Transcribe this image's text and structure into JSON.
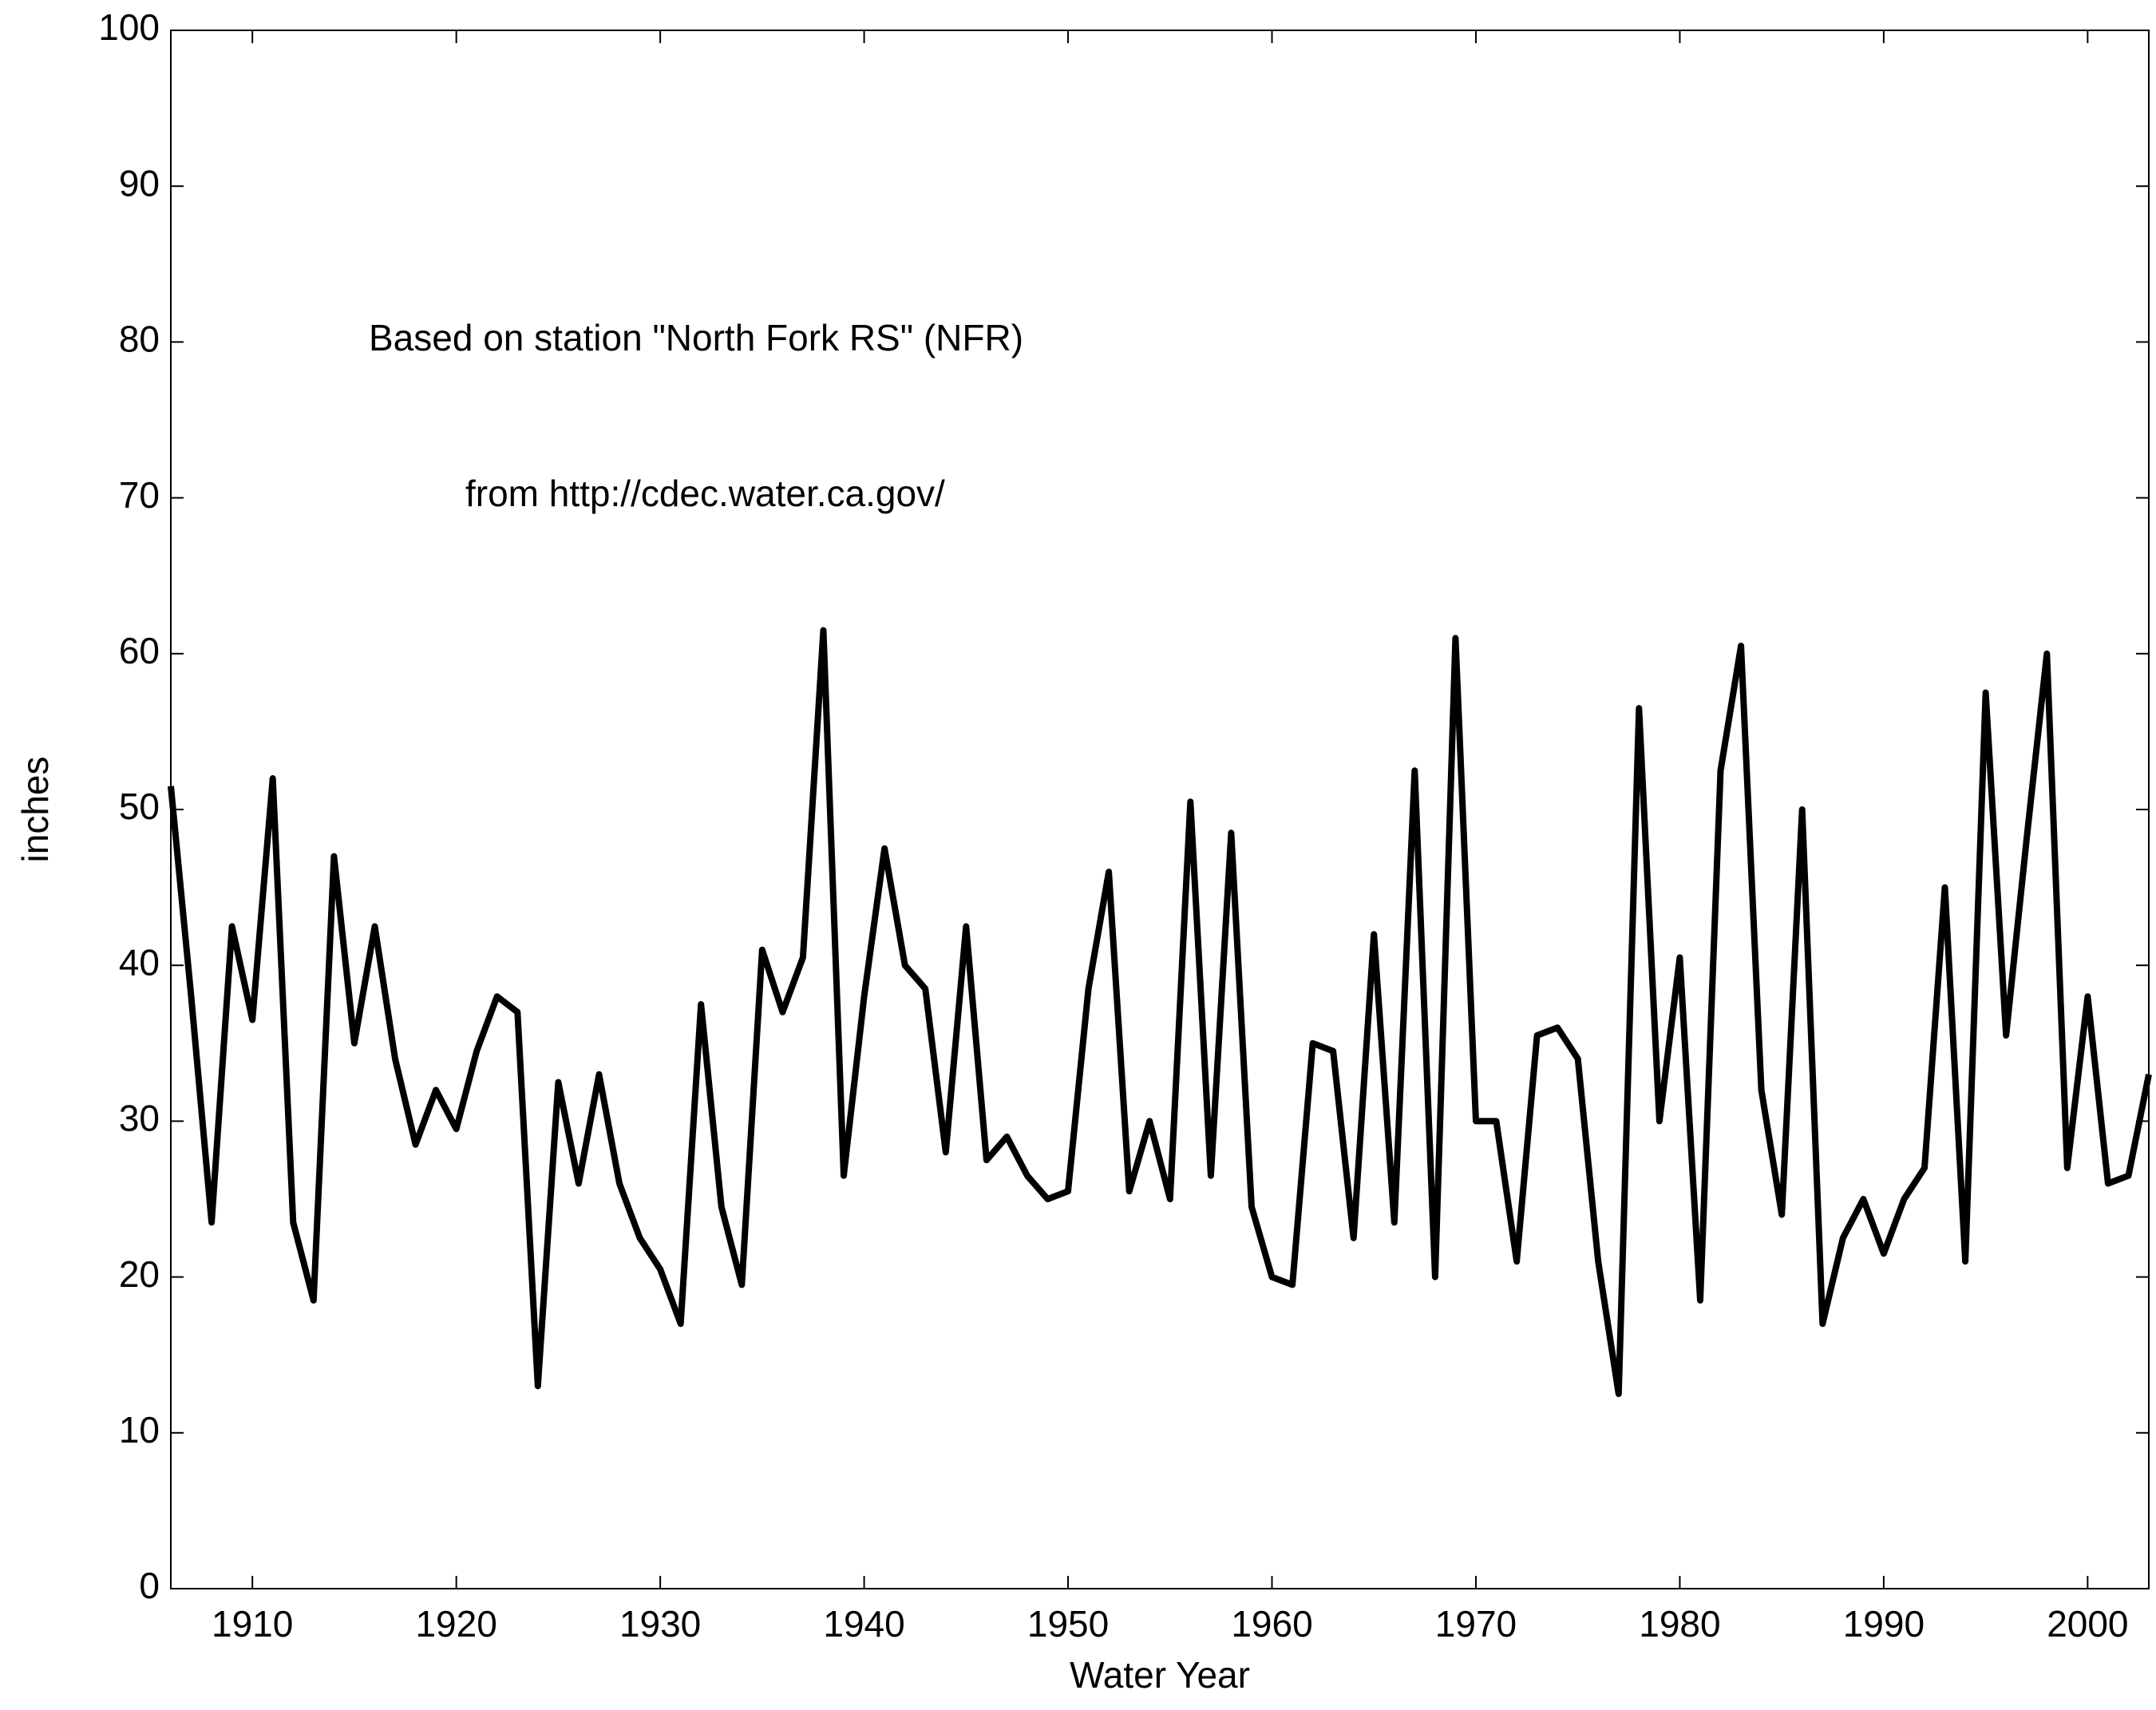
{
  "chart_data": {
    "type": "line",
    "x_label": "Water Year",
    "y_label": "inches",
    "annotations": [
      "Based on station \"North Fork RS\" (NFR)",
      "from http://cdec.water.ca.gov/"
    ],
    "x": [
      1906,
      1907,
      1908,
      1909,
      1910,
      1911,
      1912,
      1913,
      1914,
      1915,
      1916,
      1917,
      1918,
      1919,
      1920,
      1921,
      1922,
      1923,
      1924,
      1925,
      1926,
      1927,
      1928,
      1929,
      1930,
      1931,
      1932,
      1933,
      1934,
      1935,
      1936,
      1937,
      1938,
      1939,
      1940,
      1941,
      1942,
      1943,
      1944,
      1945,
      1946,
      1947,
      1948,
      1949,
      1950,
      1951,
      1952,
      1953,
      1954,
      1955,
      1956,
      1957,
      1958,
      1959,
      1960,
      1961,
      1962,
      1963,
      1964,
      1965,
      1966,
      1967,
      1968,
      1969,
      1970,
      1971,
      1972,
      1973,
      1974,
      1975,
      1976,
      1977,
      1978,
      1979,
      1980,
      1981,
      1982,
      1983,
      1984,
      1985,
      1986,
      1987,
      1988,
      1989,
      1990,
      1991,
      1992,
      1993,
      1994,
      1995,
      1996,
      1997,
      1998,
      1999,
      2000,
      2001,
      2002,
      2003
    ],
    "series": [
      {
        "name": "NFR",
        "color": "#000000",
        "values": [
          51.5,
          38,
          23.5,
          42.5,
          36.5,
          52,
          23.5,
          18.5,
          47,
          35,
          42.5,
          34,
          28.5,
          32,
          29.5,
          34.5,
          38,
          37,
          13,
          32.5,
          26,
          33,
          26,
          22.5,
          20.5,
          17,
          37.5,
          24.5,
          19.5,
          41,
          37,
          40.5,
          61.5,
          26.5,
          38,
          47.5,
          40,
          38.5,
          28,
          42.5,
          27.5,
          29,
          26.5,
          25,
          25.5,
          38.5,
          46,
          25.5,
          30,
          25,
          50.5,
          26.5,
          48.5,
          24.5,
          20,
          19.5,
          35,
          34.5,
          22.5,
          42,
          23.5,
          52.5,
          20,
          61,
          30,
          30,
          21,
          35.5,
          36,
          34,
          21,
          12.5,
          56.5,
          30,
          40.5,
          18.5,
          52.5,
          60.5,
          32,
          24,
          50,
          17,
          22.5,
          25,
          21.5,
          25,
          27,
          45,
          21,
          57.5,
          35.5,
          48,
          60,
          27,
          38,
          26,
          26.5,
          33
        ]
      }
    ],
    "xlim": [
      1906,
      2003
    ],
    "xticks": [
      1910,
      1920,
      1930,
      1940,
      1950,
      1960,
      1970,
      1980,
      1990,
      2000
    ],
    "ylim": [
      0,
      100
    ],
    "yticks": [
      0,
      10,
      20,
      30,
      40,
      50,
      60,
      70,
      80,
      90,
      100
    ],
    "grid": false
  }
}
